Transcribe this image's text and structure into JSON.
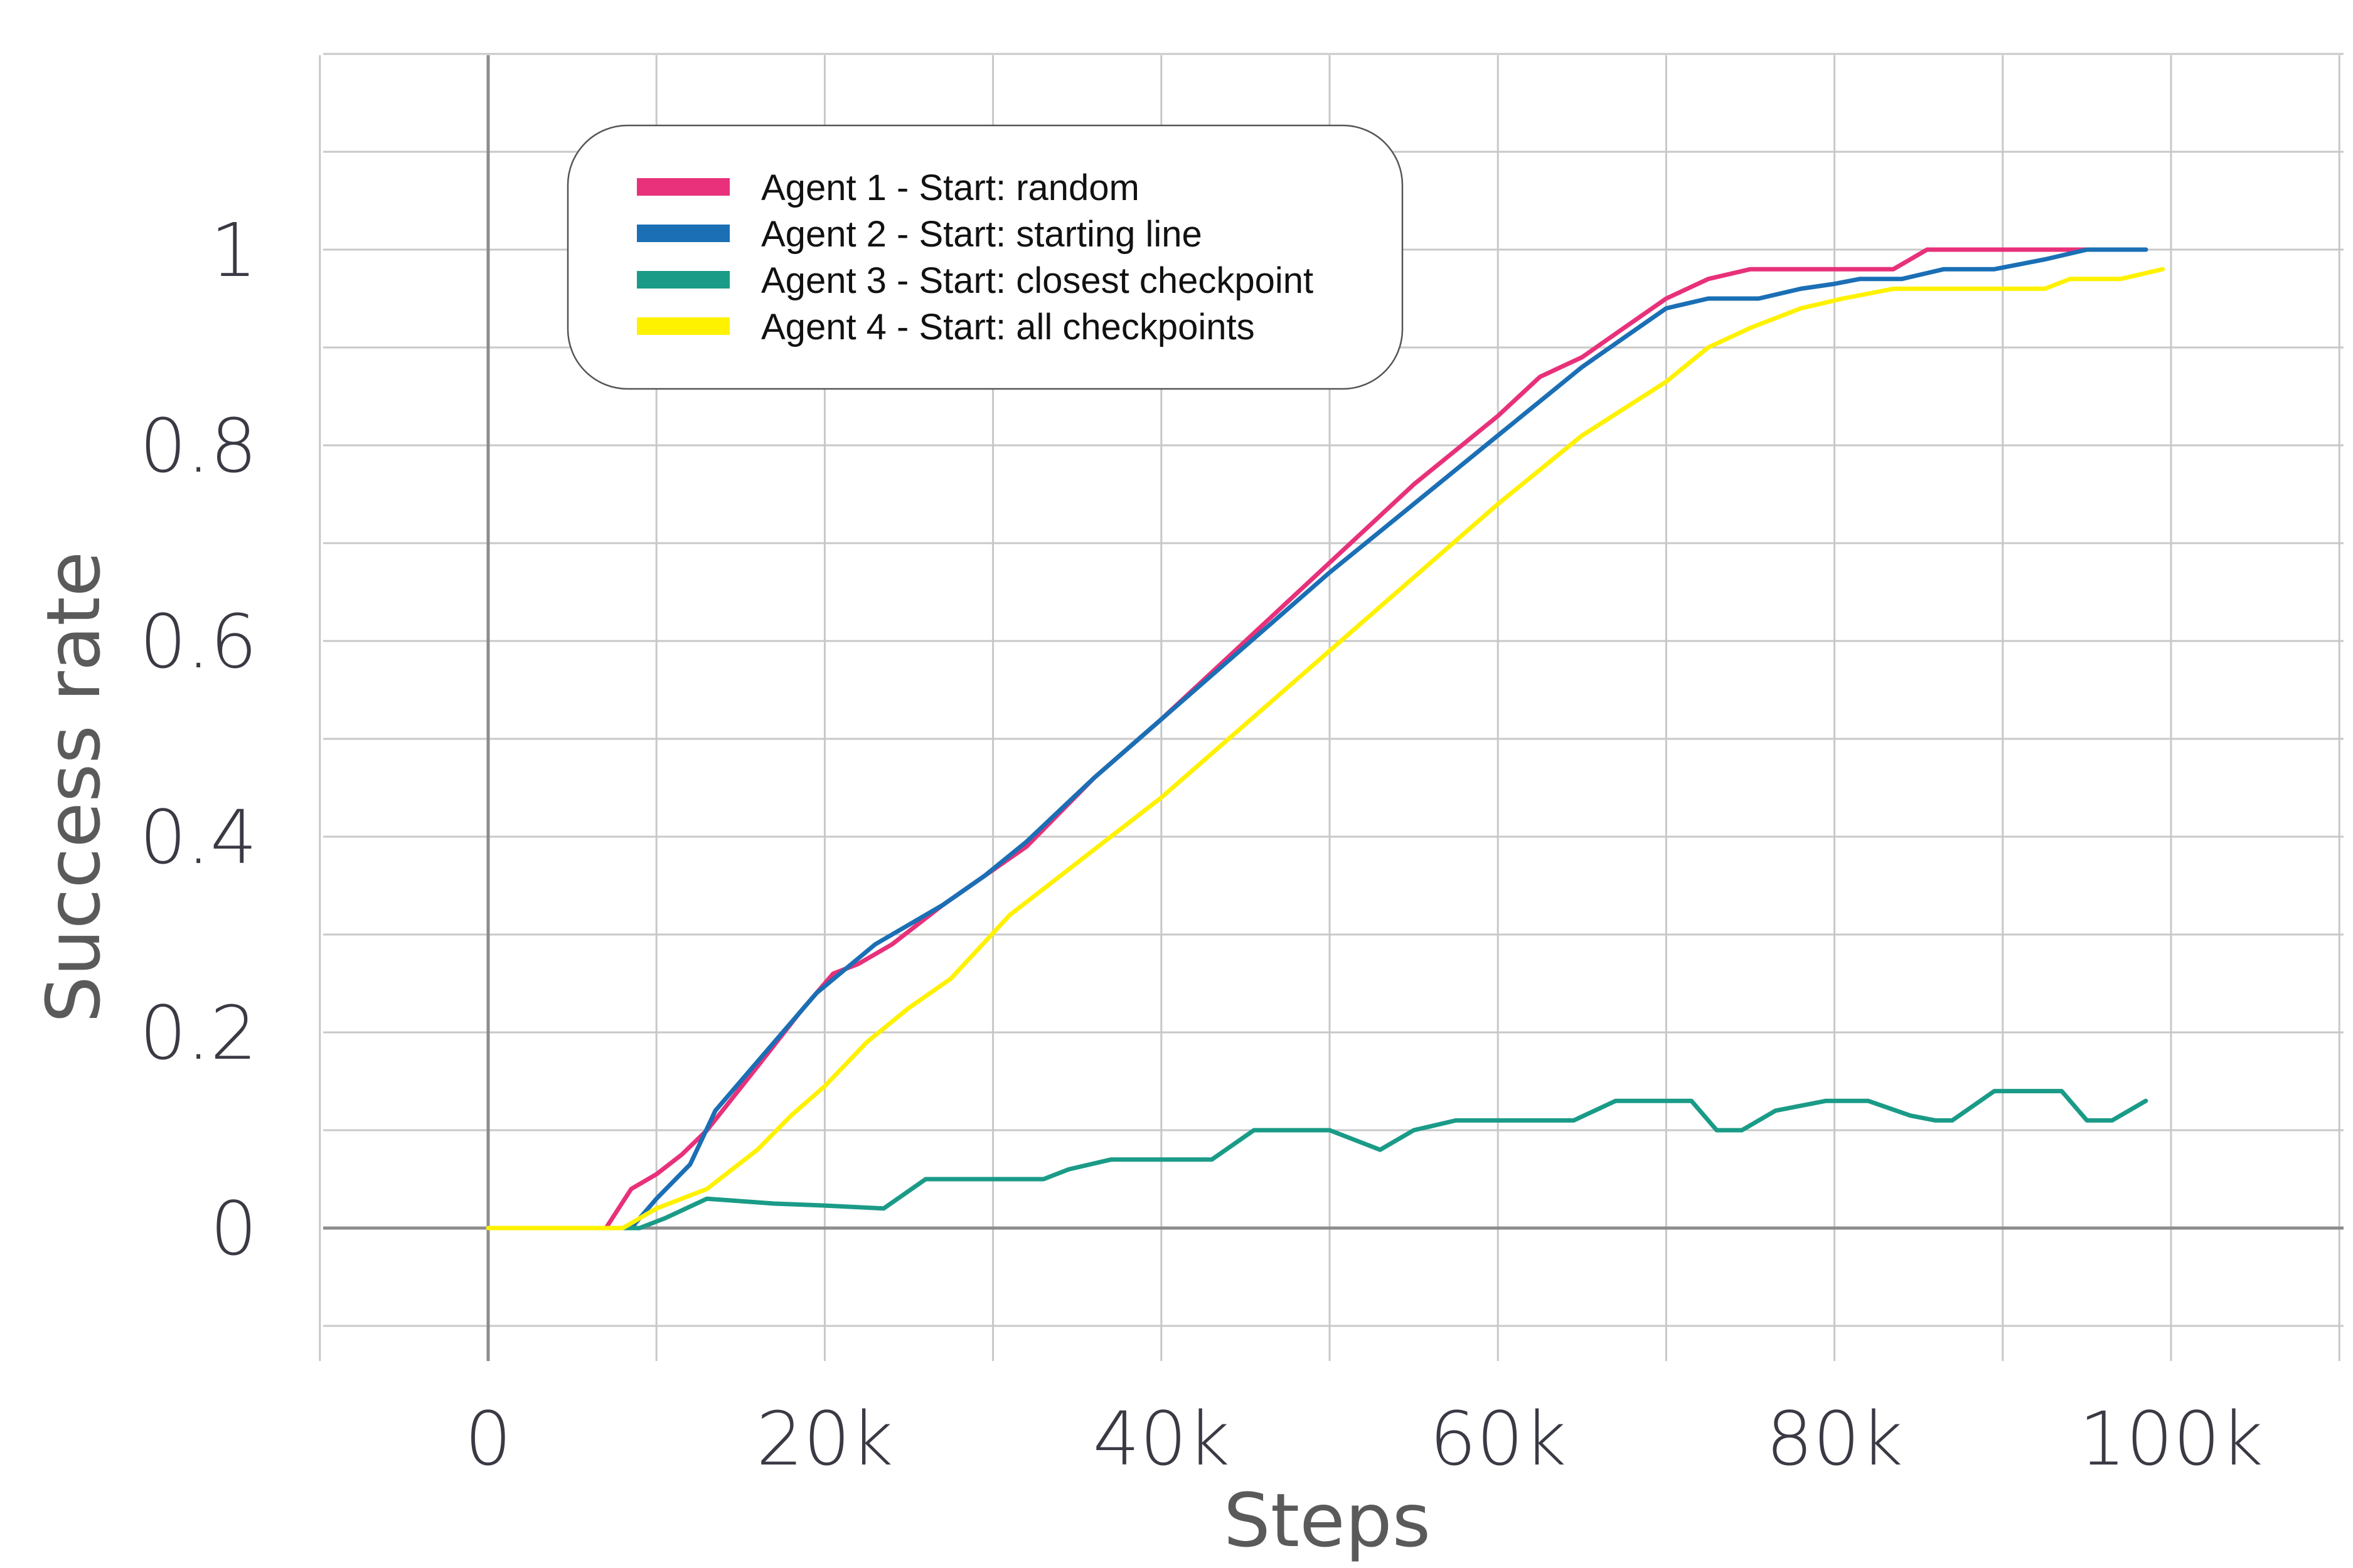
{
  "chart_data": {
    "type": "line",
    "title": "",
    "xlabel": "Steps",
    "ylabel": "Success rate",
    "xlim": [
      -10000,
      110000
    ],
    "ylim": [
      -0.1,
      1.2
    ],
    "grid": true,
    "legend_position": "top-left",
    "x_ticks": [
      {
        "value": 0,
        "label": "0"
      },
      {
        "value": 20000,
        "label": "20k"
      },
      {
        "value": 40000,
        "label": "40k"
      },
      {
        "value": 60000,
        "label": "60k"
      },
      {
        "value": 80000,
        "label": "80k"
      },
      {
        "value": 100000,
        "label": "100k"
      }
    ],
    "y_ticks": [
      {
        "value": 0,
        "label": "0"
      },
      {
        "value": 0.2,
        "label": "0.2"
      },
      {
        "value": 0.4,
        "label": "0.4"
      },
      {
        "value": 0.6,
        "label": "0.6"
      },
      {
        "value": 0.8,
        "label": "0.8"
      },
      {
        "value": 1,
        "label": "1"
      }
    ],
    "series": [
      {
        "name": "Agent 1 - Start: random",
        "color": "#e8317a",
        "points": [
          [
            0,
            0
          ],
          [
            7000,
            0
          ],
          [
            8500,
            0.04
          ],
          [
            10000,
            0.055
          ],
          [
            11500,
            0.075
          ],
          [
            13000,
            0.1
          ],
          [
            16000,
            0.165
          ],
          [
            18500,
            0.22
          ],
          [
            20500,
            0.26
          ],
          [
            22000,
            0.27
          ],
          [
            24000,
            0.29
          ],
          [
            27000,
            0.33
          ],
          [
            29500,
            0.36
          ],
          [
            32000,
            0.39
          ],
          [
            36000,
            0.46
          ],
          [
            40000,
            0.52
          ],
          [
            45000,
            0.6
          ],
          [
            50000,
            0.68
          ],
          [
            55000,
            0.76
          ],
          [
            60000,
            0.83
          ],
          [
            62500,
            0.87
          ],
          [
            65000,
            0.89
          ],
          [
            67500,
            0.92
          ],
          [
            70000,
            0.95
          ],
          [
            72500,
            0.97
          ],
          [
            75000,
            0.98
          ],
          [
            80000,
            0.98
          ],
          [
            83500,
            0.98
          ],
          [
            85500,
            1.0
          ],
          [
            90000,
            1.0
          ],
          [
            95000,
            1.0
          ],
          [
            98500,
            1.0
          ]
        ]
      },
      {
        "name": "Agent 2 - Start: starting line",
        "color": "#1a6fb5",
        "points": [
          [
            0,
            0
          ],
          [
            8500,
            0
          ],
          [
            10000,
            0.03
          ],
          [
            12000,
            0.065
          ],
          [
            13500,
            0.12
          ],
          [
            16500,
            0.18
          ],
          [
            19500,
            0.24
          ],
          [
            23000,
            0.29
          ],
          [
            27000,
            0.33
          ],
          [
            29500,
            0.36
          ],
          [
            32000,
            0.395
          ],
          [
            36000,
            0.46
          ],
          [
            40000,
            0.52
          ],
          [
            45000,
            0.595
          ],
          [
            50000,
            0.67
          ],
          [
            55000,
            0.74
          ],
          [
            60000,
            0.81
          ],
          [
            65000,
            0.88
          ],
          [
            67500,
            0.91
          ],
          [
            70000,
            0.94
          ],
          [
            72500,
            0.95
          ],
          [
            75500,
            0.95
          ],
          [
            78000,
            0.96
          ],
          [
            80000,
            0.965
          ],
          [
            81500,
            0.97
          ],
          [
            84000,
            0.97
          ],
          [
            86500,
            0.98
          ],
          [
            89500,
            0.98
          ],
          [
            92500,
            0.99
          ],
          [
            95000,
            1.0
          ],
          [
            98500,
            1.0
          ]
        ]
      },
      {
        "name": "Agent 3 - Start: closest checkpoint",
        "color": "#1a9b87",
        "points": [
          [
            0,
            0
          ],
          [
            9000,
            0
          ],
          [
            10500,
            0.01
          ],
          [
            13000,
            0.03
          ],
          [
            17000,
            0.025
          ],
          [
            20000,
            0.023
          ],
          [
            23500,
            0.02
          ],
          [
            26000,
            0.05
          ],
          [
            30000,
            0.05
          ],
          [
            33000,
            0.05
          ],
          [
            34500,
            0.06
          ],
          [
            37000,
            0.07
          ],
          [
            40000,
            0.07
          ],
          [
            43000,
            0.07
          ],
          [
            45500,
            0.1
          ],
          [
            50000,
            0.1
          ],
          [
            53000,
            0.08
          ],
          [
            55000,
            0.1
          ],
          [
            57500,
            0.11
          ],
          [
            60000,
            0.11
          ],
          [
            64500,
            0.11
          ],
          [
            67000,
            0.13
          ],
          [
            70000,
            0.13
          ],
          [
            71500,
            0.13
          ],
          [
            73000,
            0.1
          ],
          [
            74500,
            0.1
          ],
          [
            76500,
            0.12
          ],
          [
            79500,
            0.13
          ],
          [
            82000,
            0.13
          ],
          [
            84500,
            0.115
          ],
          [
            86000,
            0.11
          ],
          [
            87000,
            0.11
          ],
          [
            89500,
            0.14
          ],
          [
            92000,
            0.14
          ],
          [
            93500,
            0.14
          ],
          [
            95000,
            0.11
          ],
          [
            96500,
            0.11
          ],
          [
            98500,
            0.13
          ]
        ]
      },
      {
        "name": "Agent 4 - Start: all checkpoints",
        "color": "#fff200",
        "points": [
          [
            0,
            0
          ],
          [
            8000,
            0
          ],
          [
            10000,
            0.02
          ],
          [
            13000,
            0.04
          ],
          [
            16000,
            0.08
          ],
          [
            18000,
            0.115
          ],
          [
            20000,
            0.145
          ],
          [
            22500,
            0.19
          ],
          [
            25000,
            0.225
          ],
          [
            27500,
            0.255
          ],
          [
            31000,
            0.32
          ],
          [
            34000,
            0.36
          ],
          [
            37000,
            0.4
          ],
          [
            40000,
            0.44
          ],
          [
            45000,
            0.515
          ],
          [
            50000,
            0.59
          ],
          [
            55000,
            0.665
          ],
          [
            60000,
            0.74
          ],
          [
            65000,
            0.81
          ],
          [
            70000,
            0.865
          ],
          [
            72500,
            0.9
          ],
          [
            75000,
            0.92
          ],
          [
            78000,
            0.94
          ],
          [
            80500,
            0.95
          ],
          [
            83500,
            0.96
          ],
          [
            86500,
            0.96
          ],
          [
            89000,
            0.96
          ],
          [
            92500,
            0.96
          ],
          [
            94000,
            0.97
          ],
          [
            97000,
            0.97
          ],
          [
            99500,
            0.98
          ]
        ]
      }
    ]
  }
}
